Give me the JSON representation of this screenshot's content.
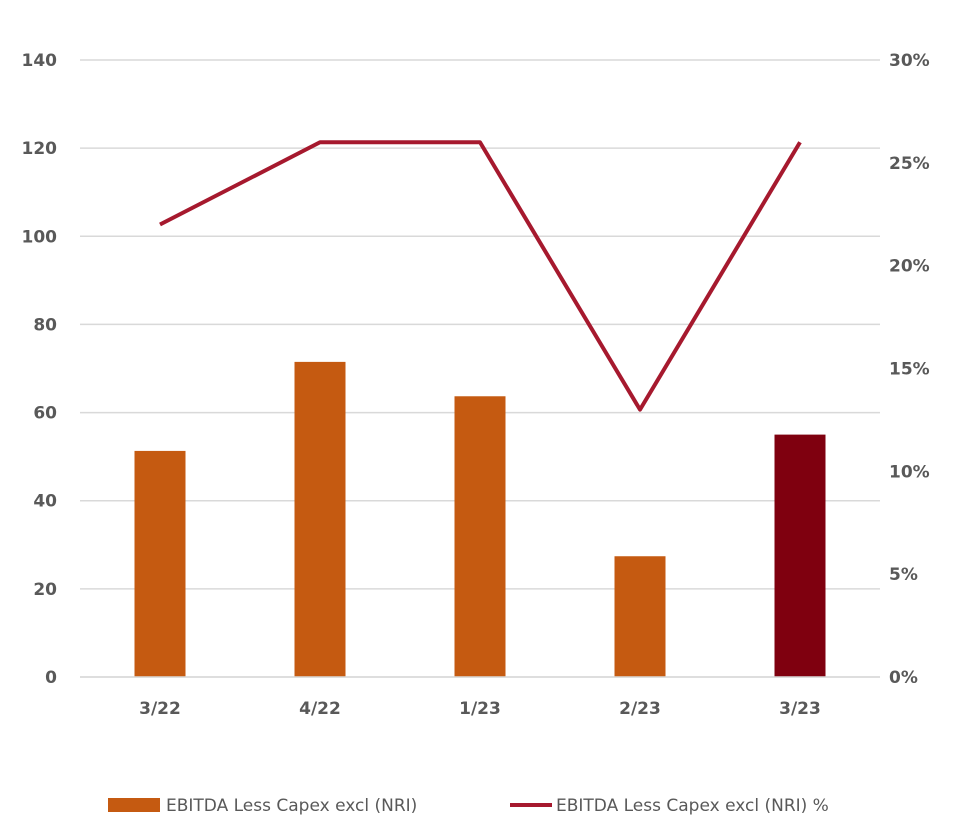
{
  "chart_data": {
    "type": "bar",
    "categories": [
      "3/22",
      "4/22",
      "1/23",
      "2/23",
      "3/23"
    ],
    "series": [
      {
        "name": "EBITDA Less Capex  excl (NRI)",
        "type": "bar",
        "axis": "left",
        "values": [
          51.3,
          71.5,
          63.7,
          27.4,
          55.0
        ],
        "colors": [
          "#c55a11",
          "#c55a11",
          "#c55a11",
          "#c55a11",
          "#7f000f"
        ]
      },
      {
        "name": "EBITDA Less Capex  excl (NRI) %",
        "type": "line",
        "axis": "right",
        "values": [
          0.22,
          0.26,
          0.26,
          0.13,
          0.26
        ],
        "color": "#a6192e"
      }
    ],
    "y_left": {
      "ylim": [
        0,
        140
      ],
      "ticks": [
        0,
        20,
        40,
        60,
        80,
        100,
        120,
        140
      ],
      "tick_labels": [
        "0",
        "20",
        "40",
        "60",
        "80",
        "100",
        "120",
        "140"
      ]
    },
    "y_right": {
      "ylim": [
        0,
        0.3
      ],
      "ticks": [
        0,
        0.05,
        0.1,
        0.15,
        0.2,
        0.25,
        0.3
      ],
      "tick_labels": [
        "0%",
        "5%",
        "10%",
        "15%",
        "20%",
        "25%",
        "30%"
      ]
    },
    "title": "",
    "xlabel": "",
    "ylabel": "",
    "grid": true,
    "legend_position": "bottom",
    "gridline_color": "#d9d9d9"
  }
}
